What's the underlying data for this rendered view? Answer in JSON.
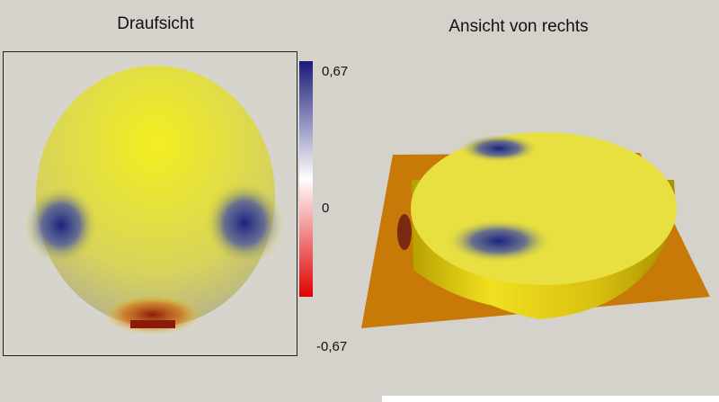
{
  "panels": [
    {
      "title": "Draufsicht"
    },
    {
      "title": "Ansicht von rechts"
    }
  ],
  "colorbar": {
    "labels": [
      "0,67",
      "0",
      "-0,67"
    ]
  }
}
